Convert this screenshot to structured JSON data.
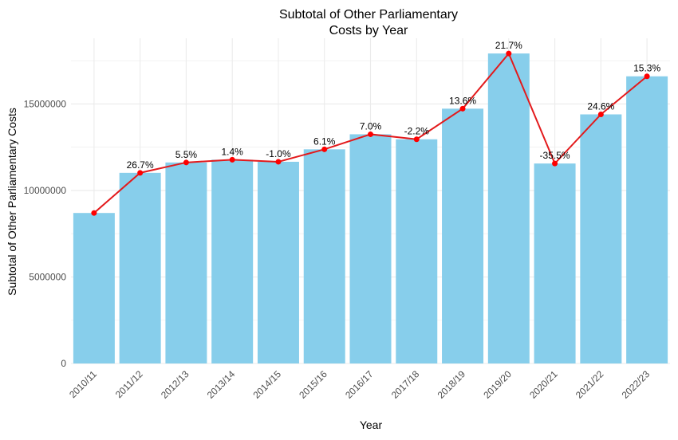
{
  "chart_data": {
    "type": "bar",
    "title_lines": [
      "Subtotal of Other Parliamentary",
      "Costs by Year"
    ],
    "xlabel": "Year",
    "ylabel": "Subtotal of Other Parliamentary Costs",
    "categories": [
      "2010/11",
      "2011/12",
      "2012/13",
      "2013/14",
      "2014/15",
      "2015/16",
      "2016/17",
      "2017/18",
      "2018/19",
      "2019/20",
      "2020/21",
      "2021/22",
      "2022/23"
    ],
    "values": [
      8700000,
      11020000,
      11620000,
      11780000,
      11660000,
      12380000,
      13250000,
      12960000,
      14730000,
      17920000,
      11560000,
      14400000,
      16600000
    ],
    "line_labels": [
      "",
      "26.7%",
      "5.5%",
      "1.4%",
      "-1.0%",
      "6.1%",
      "7.0%",
      "-2.2%",
      "13.6%",
      "21.7%",
      "-35.5%",
      "24.6%",
      "15.3%"
    ],
    "yticks": [
      0,
      5000000,
      10000000,
      15000000
    ],
    "ytick_labels": [
      "0",
      "5000000",
      "10000000",
      "15000000"
    ],
    "ylim": [
      0,
      18800000
    ],
    "grid": true,
    "legend": "none",
    "colors": {
      "bar": "#87ceeb",
      "line": "#e31a1c",
      "point": "#ff0000",
      "grid": "#ebebeb"
    }
  }
}
